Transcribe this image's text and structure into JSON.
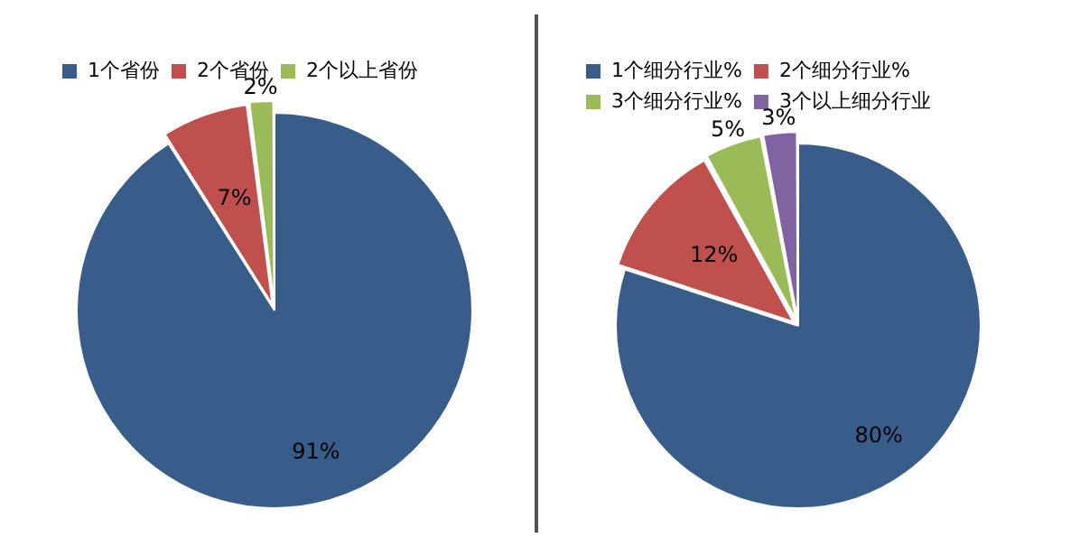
{
  "chart_data": [
    {
      "type": "pie",
      "categories": [
        "1个省份",
        "2个省份",
        "2个以上省份"
      ],
      "values": [
        91,
        7,
        2
      ],
      "value_labels": [
        "91%",
        "7%",
        "2%"
      ],
      "colors": [
        "#385d8a",
        "#c0504d",
        "#9bbb59"
      ],
      "legend": "top"
    },
    {
      "type": "pie",
      "categories": [
        "1个细分行业%",
        "2个细分行业%",
        "3个细分行业%",
        "3个以上细分行业"
      ],
      "values": [
        80,
        12,
        5,
        3
      ],
      "value_labels": [
        "80%",
        "12%",
        "5%",
        "3%"
      ],
      "colors": [
        "#385d8a",
        "#c0504d",
        "#9bbb59",
        "#8064a2"
      ],
      "legend": "top"
    }
  ]
}
